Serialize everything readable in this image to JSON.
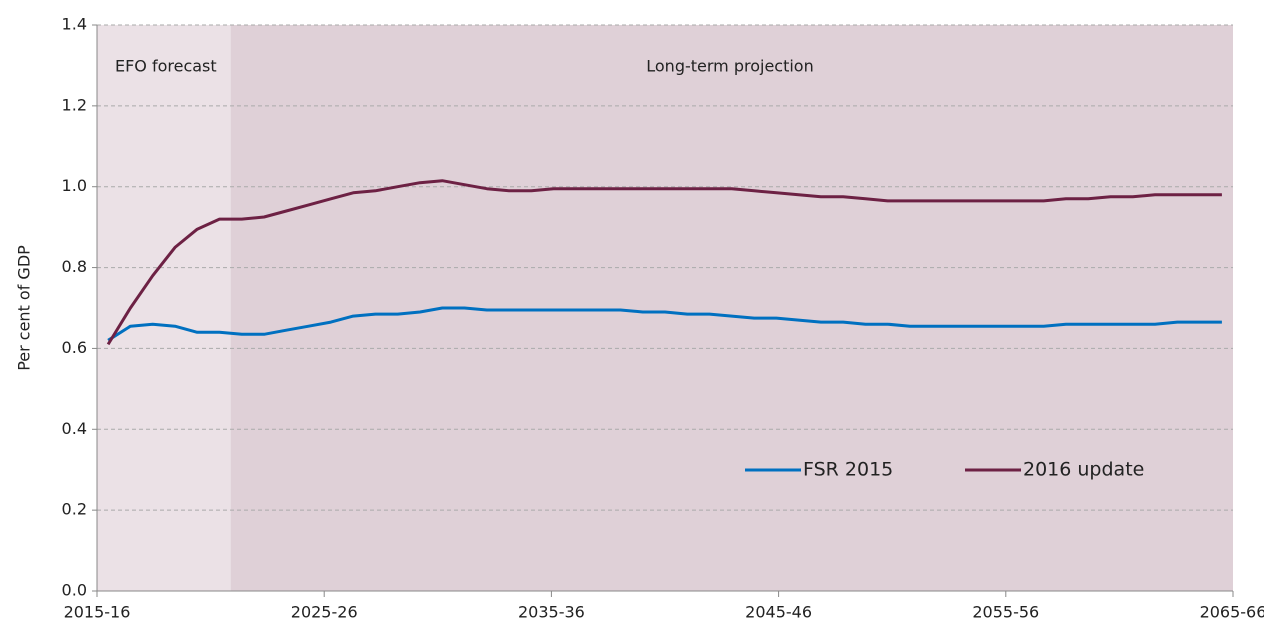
{
  "chart_data": {
    "type": "line",
    "y_label": "Per cent of GDP",
    "categories": [
      "2015-16",
      null,
      null,
      null,
      null,
      null,
      null,
      null,
      null,
      null,
      "2025-26",
      null,
      null,
      null,
      null,
      null,
      null,
      null,
      null,
      null,
      "2035-36",
      null,
      null,
      null,
      null,
      null,
      null,
      null,
      null,
      null,
      "2045-46",
      null,
      null,
      null,
      null,
      null,
      null,
      null,
      null,
      null,
      "2055-56",
      null,
      null,
      null,
      null,
      null,
      null,
      null,
      null,
      null,
      "2065-66"
    ],
    "series": [
      {
        "name": "FSR 2015",
        "color": "#0070c0",
        "values": [
          0.62,
          0.655,
          0.66,
          0.655,
          0.64,
          0.64,
          0.635,
          0.635,
          0.645,
          0.655,
          0.665,
          0.68,
          0.685,
          0.685,
          0.69,
          0.7,
          0.7,
          0.695,
          0.695,
          0.695,
          0.695,
          0.695,
          0.695,
          0.695,
          0.69,
          0.69,
          0.685,
          0.685,
          0.68,
          0.675,
          0.675,
          0.67,
          0.665,
          0.665,
          0.66,
          0.66,
          0.655,
          0.655,
          0.655,
          0.655,
          0.655,
          0.655,
          0.655,
          0.66,
          0.66,
          0.66,
          0.66,
          0.66,
          0.665,
          0.665,
          0.665
        ]
      },
      {
        "name": "2016 update",
        "color": "#6d2144",
        "values": [
          0.61,
          0.7,
          0.78,
          0.85,
          0.895,
          0.92,
          0.92,
          0.925,
          0.94,
          0.955,
          0.97,
          0.985,
          0.99,
          1.0,
          1.01,
          1.015,
          1.005,
          0.995,
          0.99,
          0.99,
          0.995,
          0.995,
          0.995,
          0.995,
          0.995,
          0.995,
          0.995,
          0.995,
          0.995,
          0.99,
          0.985,
          0.98,
          0.975,
          0.975,
          0.97,
          0.965,
          0.965,
          0.965,
          0.965,
          0.965,
          0.965,
          0.965,
          0.965,
          0.97,
          0.97,
          0.975,
          0.975,
          0.98,
          0.98,
          0.98,
          0.98
        ]
      }
    ],
    "regions": [
      {
        "label": "EFO forecast",
        "color": "#ebe1e6"
      },
      {
        "label": "Long-term projection",
        "color": "#dfd0d7"
      }
    ],
    "ylim": [
      0,
      1.4
    ],
    "yticks": [
      {
        "value": 0,
        "label": "0.0"
      },
      0.2,
      0.4,
      0.6,
      0.8,
      {
        "value": 1,
        "label": "1.0"
      },
      1.2,
      1.4
    ],
    "grid": true,
    "legend": "lower right"
  }
}
